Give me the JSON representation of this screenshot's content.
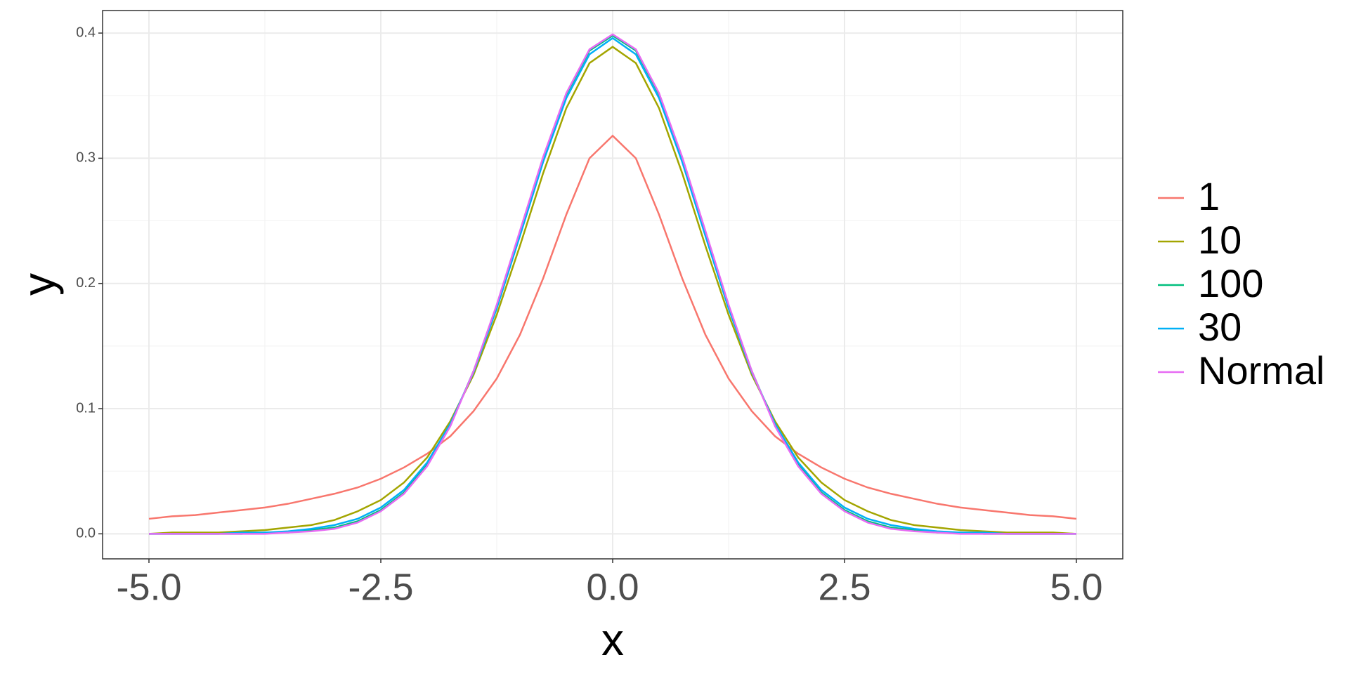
{
  "chart_data": {
    "type": "line",
    "x_label": "x",
    "y_label": "y",
    "x": [
      -5,
      -4.75,
      -4.5,
      -4.25,
      -4,
      -3.75,
      -3.5,
      -3.25,
      -3,
      -2.75,
      -2.5,
      -2.25,
      -2,
      -1.75,
      -1.5,
      -1.25,
      -1,
      -0.75,
      -0.5,
      -0.25,
      0,
      0.25,
      0.5,
      0.75,
      1,
      1.25,
      1.5,
      1.75,
      2,
      2.25,
      2.5,
      2.75,
      3,
      3.25,
      3.5,
      3.75,
      4,
      4.25,
      4.5,
      4.75,
      5
    ],
    "series": [
      {
        "name": "1",
        "color": "#F8766D",
        "values": [
          0.012,
          0.014,
          0.015,
          0.017,
          0.019,
          0.021,
          0.024,
          0.028,
          0.032,
          0.037,
          0.044,
          0.053,
          0.064,
          0.078,
          0.098,
          0.124,
          0.159,
          0.204,
          0.255,
          0.3,
          0.318,
          0.3,
          0.255,
          0.204,
          0.159,
          0.124,
          0.098,
          0.078,
          0.064,
          0.053,
          0.044,
          0.037,
          0.032,
          0.028,
          0.024,
          0.021,
          0.019,
          0.017,
          0.015,
          0.014,
          0.012
        ]
      },
      {
        "name": "10",
        "color": "#A3A500",
        "values": [
          0,
          0.001,
          0.001,
          0.001,
          0.002,
          0.003,
          0.005,
          0.007,
          0.011,
          0.018,
          0.027,
          0.041,
          0.061,
          0.09,
          0.127,
          0.175,
          0.23,
          0.288,
          0.34,
          0.376,
          0.389,
          0.376,
          0.34,
          0.288,
          0.23,
          0.175,
          0.127,
          0.09,
          0.061,
          0.041,
          0.027,
          0.018,
          0.011,
          0.007,
          0.005,
          0.003,
          0.002,
          0.001,
          0.001,
          0.001,
          0
        ]
      },
      {
        "name": "100",
        "color": "#00BF7D",
        "values": [
          0,
          0,
          0,
          0,
          0,
          0.001,
          0.001,
          0.003,
          0.005,
          0.01,
          0.019,
          0.033,
          0.055,
          0.087,
          0.13,
          0.182,
          0.241,
          0.3,
          0.351,
          0.386,
          0.398,
          0.386,
          0.351,
          0.3,
          0.241,
          0.182,
          0.13,
          0.087,
          0.055,
          0.033,
          0.019,
          0.01,
          0.005,
          0.003,
          0.001,
          0.001,
          0,
          0,
          0,
          0,
          0
        ]
      },
      {
        "name": "30",
        "color": "#00B0F6",
        "values": [
          0,
          0,
          0,
          0,
          0.001,
          0.001,
          0.002,
          0.004,
          0.007,
          0.012,
          0.021,
          0.035,
          0.057,
          0.088,
          0.129,
          0.18,
          0.238,
          0.297,
          0.348,
          0.383,
          0.396,
          0.383,
          0.348,
          0.297,
          0.238,
          0.18,
          0.129,
          0.088,
          0.057,
          0.035,
          0.021,
          0.012,
          0.007,
          0.004,
          0.002,
          0.001,
          0.001,
          0,
          0,
          0,
          0
        ]
      },
      {
        "name": "Normal",
        "color": "#E76BF3",
        "values": [
          0,
          0,
          0,
          0,
          0,
          0,
          0.001,
          0.002,
          0.004,
          0.009,
          0.018,
          0.032,
          0.054,
          0.086,
          0.13,
          0.183,
          0.242,
          0.301,
          0.352,
          0.387,
          0.399,
          0.387,
          0.352,
          0.301,
          0.242,
          0.183,
          0.13,
          0.086,
          0.054,
          0.032,
          0.018,
          0.009,
          0.004,
          0.002,
          0.001,
          0,
          0,
          0,
          0,
          0,
          0
        ]
      }
    ],
    "xlim": [
      -5.5,
      5.5
    ],
    "xticks": [
      {
        "value": -5,
        "label": "-5.0"
      },
      -2.5,
      {
        "value": 0,
        "label": "0.0"
      },
      2.5,
      {
        "value": 5,
        "label": "5.0"
      }
    ],
    "ylim": [
      -0.02,
      0.418
    ],
    "yticks": [
      {
        "value": 0,
        "label": "0.0"
      },
      0.1,
      0.2,
      0.3,
      0.4
    ],
    "grid": true,
    "legend": "right"
  }
}
